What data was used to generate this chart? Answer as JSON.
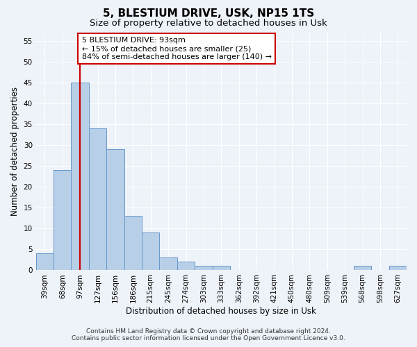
{
  "title": "5, BLESTIUM DRIVE, USK, NP15 1TS",
  "subtitle": "Size of property relative to detached houses in Usk",
  "xlabel": "Distribution of detached houses by size in Usk",
  "ylabel": "Number of detached properties",
  "categories": [
    "39sqm",
    "68sqm",
    "97sqm",
    "127sqm",
    "156sqm",
    "186sqm",
    "215sqm",
    "245sqm",
    "274sqm",
    "303sqm",
    "333sqm",
    "362sqm",
    "392sqm",
    "421sqm",
    "450sqm",
    "480sqm",
    "509sqm",
    "539sqm",
    "568sqm",
    "598sqm",
    "627sqm"
  ],
  "values": [
    4,
    24,
    45,
    34,
    29,
    13,
    9,
    3,
    2,
    1,
    1,
    0,
    0,
    0,
    0,
    0,
    0,
    0,
    1,
    0,
    1
  ],
  "bar_color": "#b8cfe8",
  "bar_edge_color": "#6699cc",
  "red_line_index": 2,
  "red_line_color": "#cc0000",
  "annotation_text": "5 BLESTIUM DRIVE: 93sqm\n← 15% of detached houses are smaller (25)\n84% of semi-detached houses are larger (140) →",
  "annotation_box_color": "#ffffff",
  "annotation_box_edge": "#cc0000",
  "ylim": [
    0,
    57
  ],
  "yticks": [
    0,
    5,
    10,
    15,
    20,
    25,
    30,
    35,
    40,
    45,
    50,
    55
  ],
  "footer_line1": "Contains HM Land Registry data © Crown copyright and database right 2024.",
  "footer_line2": "Contains public sector information licensed under the Open Government Licence v3.0.",
  "background_color": "#eef2f9",
  "plot_bg_color": "#eef2f9",
  "grid_color": "#ffffff",
  "title_fontsize": 11,
  "subtitle_fontsize": 9.5,
  "axis_label_fontsize": 8.5,
  "tick_fontsize": 7.5,
  "annotation_fontsize": 8,
  "footer_fontsize": 6.5
}
